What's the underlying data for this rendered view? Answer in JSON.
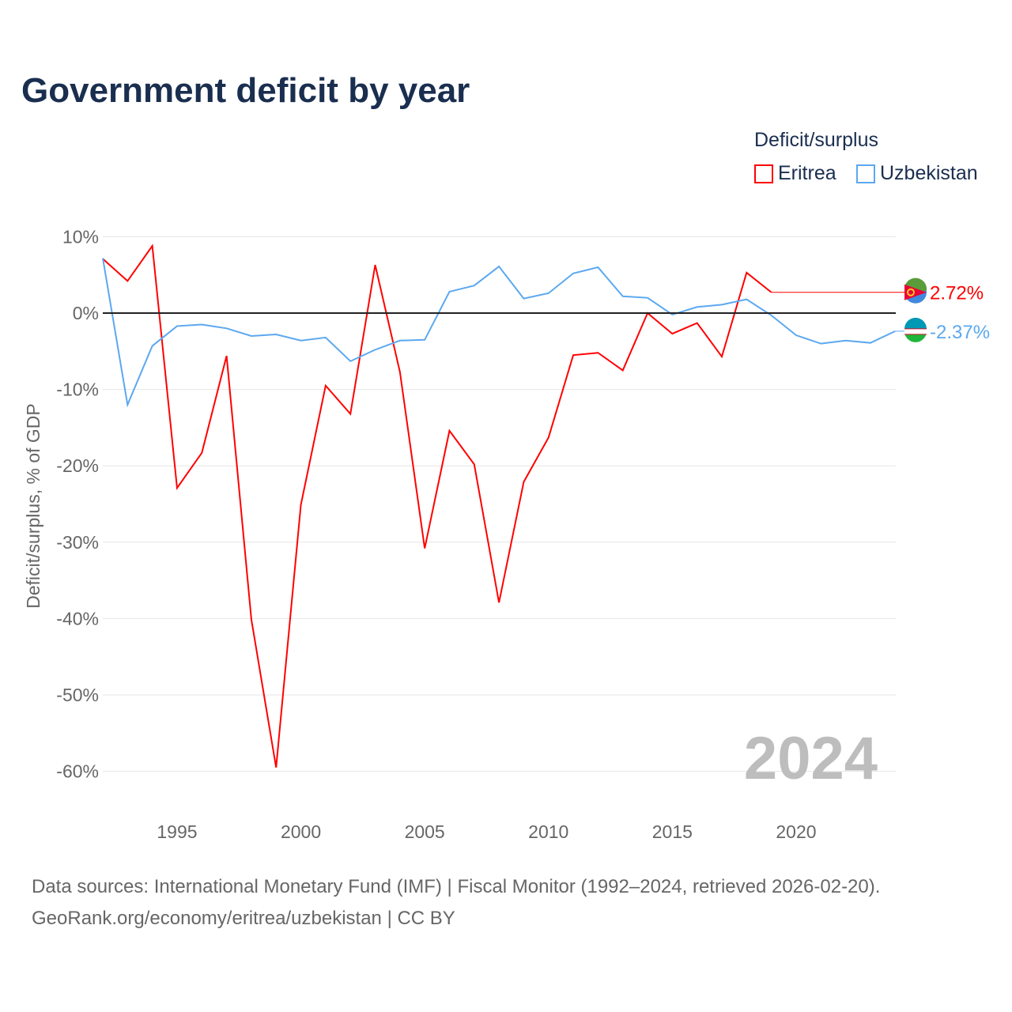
{
  "title": "Government deficit by year",
  "legend": {
    "title": "Deficit/surplus",
    "items": [
      {
        "name": "Eritrea",
        "color": "#ff0000"
      },
      {
        "name": "Uzbekistan",
        "color": "#5ba8f0"
      }
    ]
  },
  "sources": [
    "Data sources: International Monetary Fund (IMF) | Fiscal Monitor (1992–2024, retrieved 2026-02-20).",
    "GeoRank.org/economy/eritrea/uzbekistan | CC BY"
  ],
  "chart_data": {
    "type": "line",
    "ylabel": "Deficit/surplus, % of GDP",
    "xlim": [
      1992,
      2024
    ],
    "ylim": [
      -65,
      10
    ],
    "yticks": [
      10,
      0,
      -10,
      -20,
      -30,
      -40,
      -50,
      -60
    ],
    "ytick_labels": [
      "10%",
      "0%",
      "-10%",
      "-20%",
      "-30%",
      "-40%",
      "-50%",
      "-60%"
    ],
    "xticks": [
      1995,
      2000,
      2005,
      2010,
      2015,
      2020
    ],
    "year_watermark": "2024",
    "series": [
      {
        "name": "Eritrea",
        "color": "#ff0000",
        "end_label": "2.72%",
        "x": [
          1992,
          1993,
          1994,
          1995,
          1996,
          1997,
          1998,
          1999,
          2000,
          2001,
          2002,
          2003,
          2004,
          2005,
          2006,
          2007,
          2008,
          2009,
          2010,
          2011,
          2012,
          2013,
          2014,
          2015,
          2016,
          2017,
          2018,
          2019
        ],
        "values": [
          7.1,
          4.2,
          8.8,
          -22.9,
          -18.3,
          -5.6,
          -40.1,
          -59.5,
          -25.1,
          -9.5,
          -13.2,
          6.3,
          -7.7,
          -30.8,
          -15.4,
          -19.8,
          -37.9,
          -22.1,
          -16.3,
          -5.5,
          -5.2,
          -7.5,
          0,
          -2.7,
          -1.3,
          -5.7,
          5.3,
          2.72
        ]
      },
      {
        "name": "Uzbekistan",
        "color": "#5ba8f0",
        "end_label": "-2.37%",
        "x": [
          1992,
          1993,
          1994,
          1995,
          1996,
          1997,
          1998,
          1999,
          2000,
          2001,
          2002,
          2003,
          2004,
          2005,
          2006,
          2007,
          2008,
          2009,
          2010,
          2011,
          2012,
          2013,
          2014,
          2015,
          2016,
          2017,
          2018,
          2019,
          2020,
          2021,
          2022,
          2023,
          2024
        ],
        "values": [
          7.2,
          -12,
          -4.3,
          -1.7,
          -1.5,
          -2,
          -3,
          -2.8,
          -3.6,
          -3.2,
          -6.3,
          -4.8,
          -3.6,
          -3.5,
          2.8,
          3.6,
          6.1,
          1.9,
          2.6,
          5.2,
          6.0,
          2.2,
          2.0,
          -0.2,
          0.8,
          1.1,
          1.8,
          -0.3,
          -2.9,
          -4.0,
          -3.6,
          -3.9,
          -2.37
        ]
      }
    ]
  }
}
